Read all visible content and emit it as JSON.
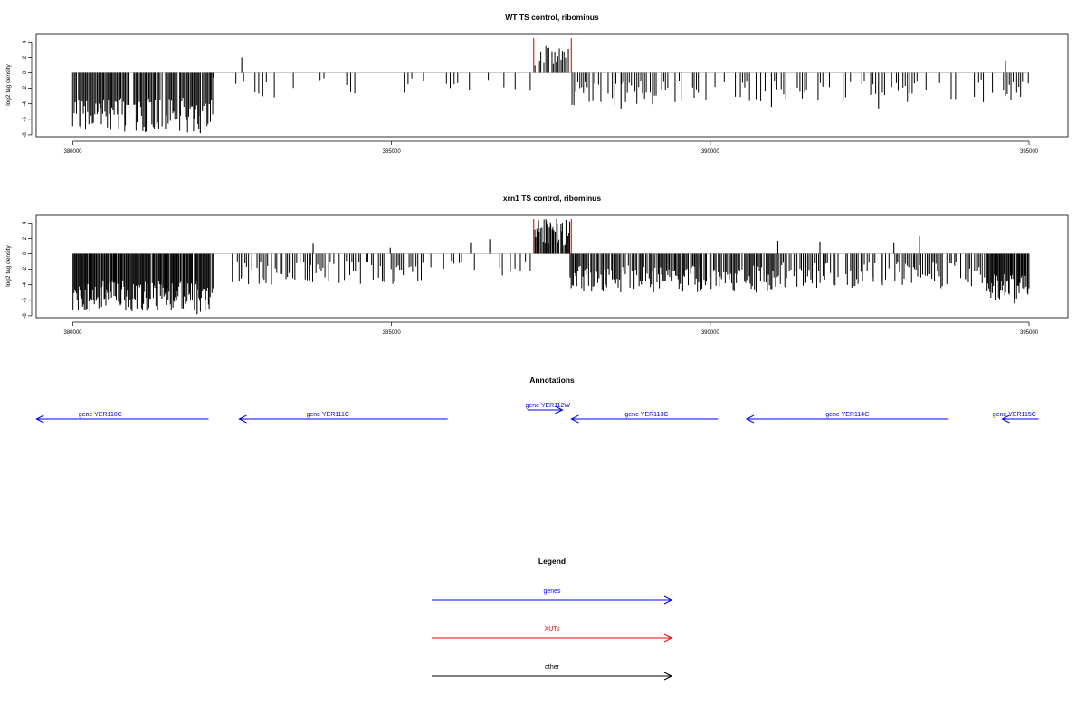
{
  "colors": {
    "genes": "#0000ff",
    "xuts": "#ff0000",
    "other": "#000000",
    "bars": "#000000",
    "zero_line": "#9a9a9a"
  },
  "chart_data": [
    {
      "type": "bar",
      "title": "WT TS control, ribominus",
      "ylabel": "log2 tag density",
      "xlim": [
        380000,
        395000
      ],
      "ylim": [
        -8,
        5
      ],
      "x_ticks": [
        380000,
        385000,
        390000,
        395000
      ],
      "x_tick_labels": [
        "380000",
        "385000",
        "390000",
        "395000"
      ],
      "y_ticks": [
        4,
        2,
        0,
        -2,
        -4,
        -6,
        -8
      ],
      "y_tick_labels": [
        "4",
        "2",
        "0",
        "-2",
        "-4",
        "-6",
        "-8"
      ],
      "grid": false,
      "baseline": 0,
      "red_markers_x": [
        387230,
        387820
      ],
      "red_marker_height": 4.5,
      "segments": [
        {
          "from": 380000,
          "to": 382200,
          "step": 18,
          "min": -7.7,
          "max": -3.2,
          "fill": 0.95
        },
        {
          "from": 382200,
          "to": 385500,
          "step": 60,
          "min": -3.2,
          "max": -0.6,
          "fill": 0.25
        },
        {
          "from": 385500,
          "to": 387200,
          "step": 60,
          "min": -2.5,
          "max": -0.6,
          "fill": 0.2
        },
        {
          "from": 387250,
          "to": 387800,
          "step": 24,
          "min": 0.8,
          "max": 3.5,
          "fill": 0.85
        },
        {
          "from": 387800,
          "to": 390000,
          "step": 30,
          "min": -4.3,
          "max": -1.0,
          "fill": 0.65
        },
        {
          "from": 390000,
          "to": 394600,
          "step": 36,
          "min": -3.8,
          "max": -0.8,
          "fill": 0.5
        },
        {
          "from": 394600,
          "to": 395000,
          "step": 30,
          "min": -3.5,
          "max": -1.0,
          "fill": 0.6
        }
      ],
      "spikes": [
        [
          382650,
          2.0
        ],
        [
          394630,
          1.6
        ],
        [
          382000,
          -7.8
        ],
        [
          381150,
          -6.7
        ],
        [
          388600,
          -4.6
        ],
        [
          390960,
          -4.4
        ],
        [
          392640,
          -4.6
        ]
      ]
    },
    {
      "type": "bar",
      "title": "xrn1 TS control, ribominus",
      "ylabel": "log2 tag density",
      "xlim": [
        380000,
        395000
      ],
      "ylim": [
        -8,
        5
      ],
      "x_ticks": [
        380000,
        385000,
        390000,
        395000
      ],
      "x_tick_labels": [
        "380000",
        "385000",
        "390000",
        "395000"
      ],
      "y_ticks": [
        4,
        2,
        0,
        -2,
        -4,
        -6,
        -8
      ],
      "y_tick_labels": [
        "4",
        "2",
        "0",
        "-2",
        "-4",
        "-6",
        "-8"
      ],
      "grid": false,
      "baseline": 0,
      "red_markers_x": [
        387230,
        387820
      ],
      "red_marker_height": 4.5,
      "segments": [
        {
          "from": 380000,
          "to": 382200,
          "step": 14,
          "min": -7.5,
          "max": -3.5,
          "fill": 0.97
        },
        {
          "from": 382500,
          "to": 385500,
          "step": 28,
          "min": -4.0,
          "max": -0.8,
          "fill": 0.6
        },
        {
          "from": 385500,
          "to": 387200,
          "step": 40,
          "min": -3.0,
          "max": -0.8,
          "fill": 0.35
        },
        {
          "from": 387250,
          "to": 387800,
          "step": 14,
          "min": 1.0,
          "max": 4.6,
          "fill": 0.95
        },
        {
          "from": 387800,
          "to": 391000,
          "step": 18,
          "min": -5.0,
          "max": -1.5,
          "fill": 0.85
        },
        {
          "from": 391000,
          "to": 394300,
          "step": 24,
          "min": -4.5,
          "max": -1.0,
          "fill": 0.7
        },
        {
          "from": 394300,
          "to": 395000,
          "step": 14,
          "min": -6.0,
          "max": -2.5,
          "fill": 0.95
        }
      ],
      "spikes": [
        [
          383770,
          1.3
        ],
        [
          384980,
          0.8
        ],
        [
          386240,
          1.5
        ],
        [
          386540,
          1.9
        ],
        [
          391060,
          1.7
        ],
        [
          391720,
          1.6
        ],
        [
          392880,
          1.5
        ],
        [
          393280,
          2.3
        ],
        [
          381950,
          -7.8
        ],
        [
          394770,
          -6.4
        ]
      ]
    }
  ],
  "annotations": {
    "title": "Annotations",
    "genes": [
      {
        "label": "gene YER110C",
        "start": 379430,
        "end": 382130,
        "strand": "-",
        "label_center": 380430,
        "row": 1
      },
      {
        "label": "gene YER111C",
        "start": 382610,
        "end": 385880,
        "strand": "-",
        "label_center": 384000,
        "row": 1
      },
      {
        "label": "gene YER112W",
        "start": 387130,
        "end": 387680,
        "strand": "+",
        "label_center": 387450,
        "row": 0
      },
      {
        "label": "gene YER113C",
        "start": 387820,
        "end": 390120,
        "strand": "-",
        "label_center": 389000,
        "row": 1
      },
      {
        "label": "gene YER114C",
        "start": 390570,
        "end": 393740,
        "strand": "-",
        "label_center": 392150,
        "row": 1
      },
      {
        "label": "gene YER115C",
        "start": 394580,
        "end": 395150,
        "strand": "-",
        "label_center": 394770,
        "row": 1
      }
    ]
  },
  "legend": {
    "title": "Legend",
    "items": [
      {
        "label": "genes",
        "color_key": "genes"
      },
      {
        "label": "XUTs",
        "color_key": "xuts"
      },
      {
        "label": "other",
        "color_key": "other"
      }
    ]
  }
}
